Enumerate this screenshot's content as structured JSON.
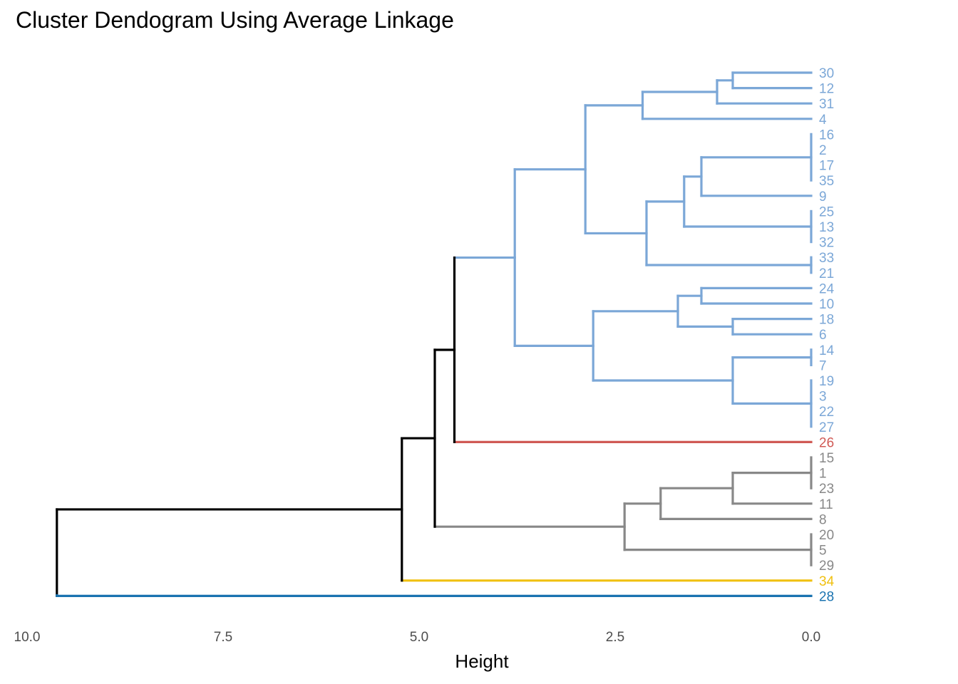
{
  "chart_data": {
    "type": "dendrogram",
    "title": "Cluster Dendogram Using Average Linkage",
    "xlabel": "Height",
    "orientation": "horizontal",
    "xlim": [
      10.0,
      0.0
    ],
    "x_ticks": [
      10.0,
      7.5,
      5.0,
      2.5,
      0.0
    ],
    "x_tick_labels": [
      "10.0",
      "7.5",
      "5.0",
      "2.5",
      "0.0"
    ],
    "grid": false,
    "colors": {
      "cluster1": "#7BA7D7",
      "cluster2": "#D05A55",
      "cluster3": "#888888",
      "cluster4": "#F0C010",
      "cluster5": "#1A73B0",
      "upper": "#000000"
    },
    "leaves": [
      {
        "label": "30",
        "cluster": "cluster1"
      },
      {
        "label": "12",
        "cluster": "cluster1"
      },
      {
        "label": "31",
        "cluster": "cluster1"
      },
      {
        "label": "4",
        "cluster": "cluster1"
      },
      {
        "label": "16",
        "cluster": "cluster1"
      },
      {
        "label": "2",
        "cluster": "cluster1"
      },
      {
        "label": "17",
        "cluster": "cluster1"
      },
      {
        "label": "35",
        "cluster": "cluster1"
      },
      {
        "label": "9",
        "cluster": "cluster1"
      },
      {
        "label": "25",
        "cluster": "cluster1"
      },
      {
        "label": "13",
        "cluster": "cluster1"
      },
      {
        "label": "32",
        "cluster": "cluster1"
      },
      {
        "label": "33",
        "cluster": "cluster1"
      },
      {
        "label": "21",
        "cluster": "cluster1"
      },
      {
        "label": "24",
        "cluster": "cluster1"
      },
      {
        "label": "10",
        "cluster": "cluster1"
      },
      {
        "label": "18",
        "cluster": "cluster1"
      },
      {
        "label": "6",
        "cluster": "cluster1"
      },
      {
        "label": "14",
        "cluster": "cluster1"
      },
      {
        "label": "7",
        "cluster": "cluster1"
      },
      {
        "label": "19",
        "cluster": "cluster1"
      },
      {
        "label": "3",
        "cluster": "cluster1"
      },
      {
        "label": "22",
        "cluster": "cluster1"
      },
      {
        "label": "27",
        "cluster": "cluster1"
      },
      {
        "label": "26",
        "cluster": "cluster2"
      },
      {
        "label": "15",
        "cluster": "cluster3"
      },
      {
        "label": "1",
        "cluster": "cluster3"
      },
      {
        "label": "23",
        "cluster": "cluster3"
      },
      {
        "label": "11",
        "cluster": "cluster3"
      },
      {
        "label": "8",
        "cluster": "cluster3"
      },
      {
        "label": "20",
        "cluster": "cluster3"
      },
      {
        "label": "5",
        "cluster": "cluster3"
      },
      {
        "label": "29",
        "cluster": "cluster3"
      },
      {
        "label": "34",
        "cluster": "cluster4"
      },
      {
        "label": "28",
        "cluster": "cluster5"
      }
    ],
    "merges": [
      {
        "children": [
          "L30",
          "L12"
        ],
        "height": 1.0,
        "color": "cluster1"
      },
      {
        "children": [
          0,
          "L31"
        ],
        "height": 1.2,
        "color": "cluster1"
      },
      {
        "children": [
          1,
          "L4"
        ],
        "height": 2.15,
        "color": "cluster1"
      },
      {
        "children": [
          "L16",
          "L2",
          "L17",
          "L35"
        ],
        "height": 0.0,
        "color": "cluster1"
      },
      {
        "children": [
          3,
          "L9"
        ],
        "height": 1.4,
        "color": "cluster1"
      },
      {
        "children": [
          "L25",
          "L13",
          "L32"
        ],
        "height": 0.0,
        "color": "cluster1"
      },
      {
        "children": [
          4,
          5
        ],
        "height": 1.62,
        "color": "cluster1"
      },
      {
        "children": [
          "L33",
          "L21"
        ],
        "height": 0.0,
        "color": "cluster1"
      },
      {
        "children": [
          6,
          7
        ],
        "height": 2.1,
        "color": "cluster1"
      },
      {
        "children": [
          2,
          8
        ],
        "height": 2.88,
        "color": "cluster1"
      },
      {
        "children": [
          "L24",
          "L10"
        ],
        "height": 1.4,
        "color": "cluster1"
      },
      {
        "children": [
          "L18",
          "L6"
        ],
        "height": 1.0,
        "color": "cluster1"
      },
      {
        "children": [
          10,
          11
        ],
        "height": 1.7,
        "color": "cluster1"
      },
      {
        "children": [
          "L14",
          "L7"
        ],
        "height": 0.0,
        "color": "cluster1"
      },
      {
        "children": [
          "L19",
          "L3",
          "L22",
          "L27"
        ],
        "height": 0.0,
        "color": "cluster1"
      },
      {
        "children": [
          13,
          14
        ],
        "height": 1.0,
        "color": "cluster1"
      },
      {
        "children": [
          12,
          15
        ],
        "height": 2.78,
        "color": "cluster1"
      },
      {
        "children": [
          9,
          16
        ],
        "height": 3.78,
        "color": "cluster1"
      },
      {
        "children": [
          17,
          "L26"
        ],
        "height": 4.55,
        "color": "upper"
      },
      {
        "children": [
          "L15",
          "L1",
          "L23"
        ],
        "height": 0.0,
        "color": "cluster3"
      },
      {
        "children": [
          19,
          "L11"
        ],
        "height": 1.0,
        "color": "cluster3"
      },
      {
        "children": [
          20,
          "L8"
        ],
        "height": 1.92,
        "color": "cluster3"
      },
      {
        "children": [
          "L20",
          "L5",
          "L29"
        ],
        "height": 0.0,
        "color": "cluster3"
      },
      {
        "children": [
          21,
          22
        ],
        "height": 2.38,
        "color": "cluster3"
      },
      {
        "children": [
          18,
          23
        ],
        "height": 4.8,
        "color": "upper"
      },
      {
        "children": [
          24,
          "L34"
        ],
        "height": 5.22,
        "color": "upper"
      },
      {
        "children": [
          25,
          "L28"
        ],
        "height": 9.62,
        "color": "upper"
      }
    ]
  }
}
